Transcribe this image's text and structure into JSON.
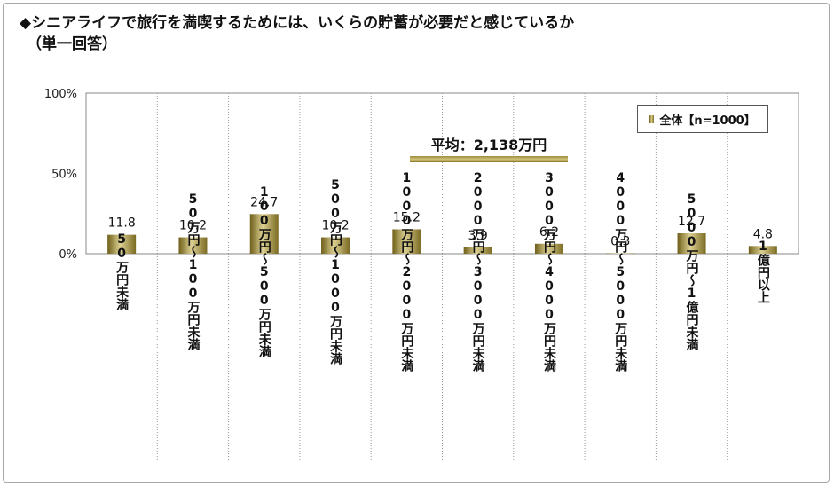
{
  "title": "◆シニアライフで旅行を満喫するためには、いくらの貯蓄が必要だと感じているか",
  "subtitle": "（単一回答）",
  "legend": {
    "label": "全体【n=1000】"
  },
  "annotation": {
    "average": "平均：2,138万円"
  },
  "colors": {
    "bar_dark": "#6f5f1a",
    "bar_light": "#dcd092",
    "grid": "#9a9a9a"
  },
  "chart_data": {
    "type": "bar",
    "categories": [
      "50万円未満",
      "50万円〜100万円未満",
      "100万円〜500万円未満",
      "500万円〜1000万円未満",
      "1000万円〜2000万円未満",
      "2000万円〜3000万円未満",
      "3000万円〜4000万円未満",
      "4000万円〜5000万円未満",
      "5000万円〜1億円未満",
      "1億円以上"
    ],
    "series": [
      {
        "name": "全体【n=1000】",
        "values": [
          11.8,
          10.2,
          24.7,
          10.2,
          15.2,
          3.9,
          6.2,
          0.3,
          12.7,
          4.8
        ]
      }
    ],
    "value_labels": [
      "11.8",
      "10.2",
      "24.7",
      "10.2",
      "15.2",
      "3.9",
      "6.2",
      "0.3",
      "12.7",
      "4.8"
    ],
    "ylim": [
      0,
      100
    ],
    "yticks": [
      "0%",
      "50%",
      "100%"
    ],
    "legend_position": "top-right",
    "grid": "vertical dotted separators"
  }
}
